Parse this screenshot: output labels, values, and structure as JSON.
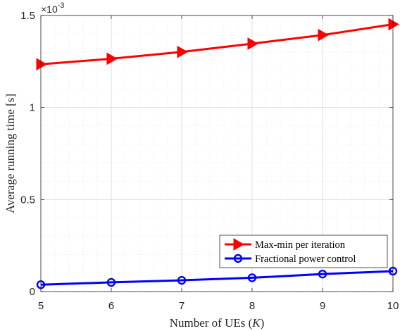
{
  "chart_data": {
    "type": "line",
    "x": [
      5,
      6,
      7,
      8,
      9,
      10
    ],
    "xlabel": "Number of UEs (",
    "xlabel_var": "K",
    "xlabel_close": ")",
    "ylabel": "Average running time [s]",
    "xlim": [
      5,
      10
    ],
    "ylim": [
      0,
      0.0015
    ],
    "xticks": [
      5,
      6,
      7,
      8,
      9,
      10
    ],
    "xtick_labels": [
      "5",
      "6",
      "7",
      "8",
      "9",
      "10"
    ],
    "yticks": [
      0,
      0.0005,
      0.001,
      0.0015
    ],
    "ytick_labels": [
      "0",
      "0.5",
      "1",
      "1.5"
    ],
    "y_exponent_base": "×10",
    "y_exponent_power": "-3",
    "grid": true,
    "minor_grid": true,
    "legend_position": "bottom-right",
    "series": [
      {
        "name": "Max-min per iteration",
        "color": "#ff0000",
        "marker": "triangle-right",
        "values": [
          0.001235,
          0.001265,
          0.001302,
          0.001347,
          0.001394,
          0.001452
        ]
      },
      {
        "name": "Fractional power control",
        "color": "#0000ff",
        "marker": "circle",
        "values": [
          3.75e-05,
          5e-05,
          6.1e-05,
          7.5e-05,
          9.5e-05,
          0.000111
        ]
      }
    ]
  }
}
